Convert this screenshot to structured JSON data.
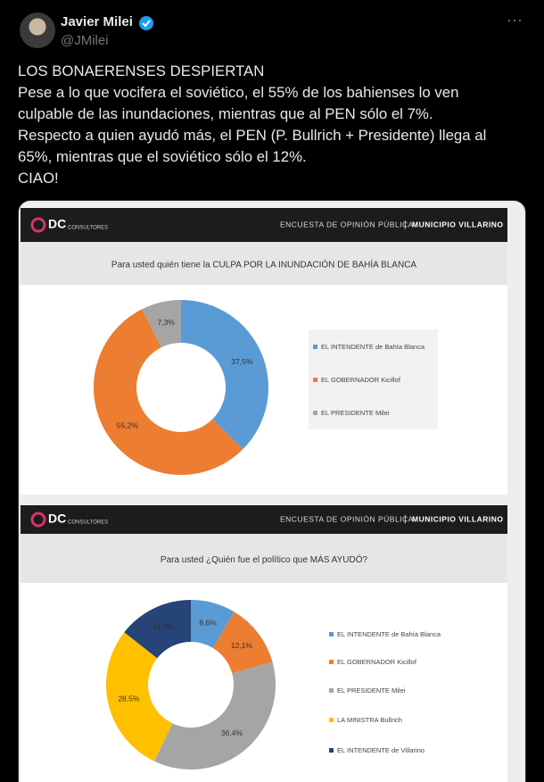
{
  "tweet": {
    "author": "Javier Milei",
    "handle": "@JMilei",
    "menu": "···",
    "lines": [
      "LOS BONAERENSES DESPIERTAN",
      "Pese a lo que vocifera el soviético, el 55% de los bahienses lo ven",
      "culpable de las inundaciones, mientras que al PEN sólo el 7%.",
      "Respecto a quien ayudó más, el PEN (P. Bullrich + Presidente) llega al",
      "65%, mientras que el soviético sólo el 12%.",
      "CIAO!"
    ]
  },
  "slides": [
    {
      "logo": "DC",
      "logo_sub": "CONSULTORES",
      "survey": "ENCUESTA DE OPINIÓN PÚBLICA",
      "separator": "|",
      "place": "MUNICIPIO VILLARINO"
    },
    {
      "logo": "DC",
      "logo_sub": "CONSULTORES",
      "survey": "ENCUESTA DE OPINIÓN PÚBLICA",
      "separator": "|",
      "place": "MUNICIPIO VILLARINO"
    }
  ],
  "chart_data": [
    {
      "type": "donut",
      "title": "Para usted quién tiene la CULPA POR LA INUNDACIÓN DE BAHÍA BLANCA",
      "categories": [
        "EL INTENDENTE de Bahía Blanca",
        "EL GOBERNADOR Kicillof",
        "EL PRESIDENTE Milei"
      ],
      "values": [
        37.5,
        55.2,
        7.3
      ],
      "value_labels": [
        "37,5%",
        "55,2%",
        "7,3%"
      ],
      "colors": [
        "#5b9bd5",
        "#ed7d31",
        "#a5a5a5"
      ]
    },
    {
      "type": "donut",
      "title": "Para usted ¿Quién fue el político que MÁS AYUDÓ?",
      "categories": [
        "EL INTENDENTE de Bahía Blanca",
        "EL GOBERNADOR Kicillof",
        "EL PRESIDENTE Milei",
        "LA MINISTRA Bullrich",
        "EL INTENDENTE de Villarino"
      ],
      "values": [
        8.6,
        12.1,
        36.4,
        28.5,
        14.4
      ],
      "value_labels": [
        "8,6%",
        "12,1%",
        "36,4%",
        "28,5%",
        "14,4%"
      ],
      "colors": [
        "#5b9bd5",
        "#ed7d31",
        "#a5a5a5",
        "#ffc000",
        "#264478"
      ]
    }
  ]
}
